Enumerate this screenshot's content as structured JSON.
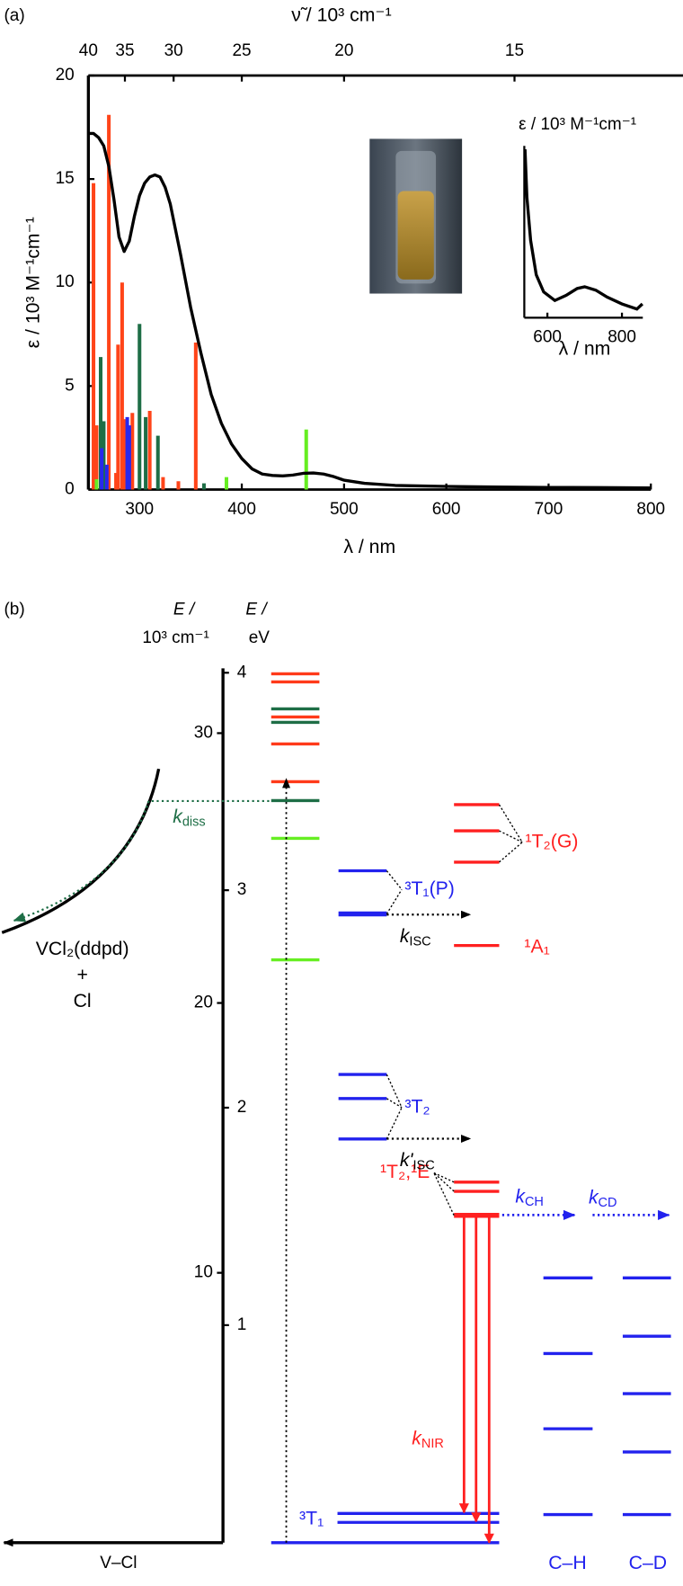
{
  "chart_data": {
    "type": "line",
    "label": "(a)",
    "x_label": "λ / nm",
    "y_label": "ε / 10³ M⁻¹cm⁻¹",
    "x2_label": "ν̃ / 10³ cm⁻¹",
    "xlim": [
      250,
      800
    ],
    "ylim": [
      0,
      20
    ],
    "xticks": [
      300,
      400,
      500,
      600,
      700,
      800
    ],
    "yticks": [
      0,
      5,
      10,
      15,
      20
    ],
    "x2ticks": [
      40,
      35,
      30,
      25,
      20,
      15
    ],
    "series": [
      {
        "type": "line",
        "color": "#000000",
        "x": [
          250,
          255,
          260,
          265,
          270,
          275,
          280,
          285,
          290,
          295,
          300,
          305,
          310,
          315,
          320,
          325,
          330,
          340,
          350,
          360,
          370,
          380,
          390,
          400,
          410,
          420,
          430,
          440,
          450,
          460,
          470,
          480,
          490,
          500,
          520,
          550,
          600,
          650,
          700,
          750,
          800
        ],
        "values": [
          17.2,
          17.2,
          17.0,
          16.6,
          15.6,
          14.0,
          12.2,
          11.5,
          12.0,
          13.2,
          14.2,
          14.8,
          15.1,
          15.2,
          15.1,
          14.6,
          13.8,
          11.4,
          8.8,
          6.6,
          4.6,
          3.2,
          2.2,
          1.5,
          1.0,
          0.75,
          0.68,
          0.66,
          0.7,
          0.78,
          0.8,
          0.75,
          0.62,
          0.45,
          0.3,
          0.2,
          0.15,
          0.12,
          0.1,
          0.09,
          0.08
        ]
      },
      {
        "type": "bar",
        "color": "#ff4419",
        "x": [
          255,
          258,
          270,
          277,
          279,
          283,
          286,
          293,
          310,
          323,
          338,
          355
        ],
        "values": [
          14.8,
          3.1,
          18.1,
          0.8,
          7.0,
          10.0,
          3.4,
          3.7,
          3.8,
          0.6,
          0.4,
          7.1
        ]
      },
      {
        "type": "bar",
        "color": "#1e6e46",
        "x": [
          262,
          265,
          300,
          306,
          318,
          363
        ],
        "values": [
          6.4,
          3.3,
          8.0,
          3.5,
          2.6,
          0.3
        ]
      },
      {
        "type": "bar",
        "color": "#2828ee",
        "x": [
          263,
          268,
          288,
          290
        ],
        "values": [
          2.0,
          1.2,
          3.5,
          3.1
        ]
      },
      {
        "type": "bar",
        "color": "#66ee22",
        "x": [
          258,
          385,
          463
        ],
        "values": [
          0.5,
          0.6,
          2.9
        ]
      }
    ],
    "inset": {
      "type": "line",
      "title": "ε  / 10³ M⁻¹cm⁻¹",
      "x_label": "λ / nm",
      "xlim": [
        538,
        856
      ],
      "ylim": [
        0,
        1
      ],
      "xticks": [
        600,
        800
      ],
      "color": "#000000",
      "x": [
        540,
        545,
        555,
        570,
        590,
        620,
        650,
        680,
        700,
        730,
        760,
        800,
        840,
        855
      ],
      "values": [
        0.98,
        0.7,
        0.45,
        0.25,
        0.15,
        0.1,
        0.13,
        0.17,
        0.18,
        0.16,
        0.12,
        0.08,
        0.05,
        0.08
      ]
    }
  },
  "diagram": {
    "label": "(b)",
    "axis_left": {
      "title": [
        "E /",
        "10³ cm⁻¹"
      ],
      "ylim": [
        0,
        32.4
      ],
      "ticks": [
        10,
        20,
        30
      ]
    },
    "axis_right": {
      "title": [
        "E /",
        "eV"
      ],
      "ylim": [
        0,
        4.02
      ],
      "ticks": [
        1,
        2,
        3,
        4
      ]
    },
    "x_label": "V–Cl",
    "products": [
      "VCl₂(ddpd)",
      "+",
      "Cl"
    ],
    "groups": [
      {
        "energies": [
          32.2,
          31.9,
          30.9,
          30.6,
          30.4,
          29.6,
          28.2,
          27.5,
          26.1,
          21.6
        ],
        "colors": [
          "#ff3a1a",
          "#ff3a1a",
          "#1e6e46",
          "#ff3a1a",
          "#1e6e46",
          "#ff3a1a",
          "#ff3a1a",
          "#1e6e46",
          "#66ee22",
          "#66ee22"
        ]
      },
      {
        "label": "³T₁(P)",
        "energies": [
          24.9,
          23.3
        ],
        "colors": [
          "#2222ee",
          "#2222ee"
        ]
      },
      {
        "label": "³T₂",
        "energies": [
          17.35,
          16.46,
          14.96
        ],
        "colors": [
          "#2222ee",
          "#2222ee",
          "#2222ee"
        ]
      },
      {
        "label": "¹T₂(G)",
        "energies": [
          27.35,
          26.38,
          25.22
        ],
        "colors": [
          "#ff2020",
          "#ff2020",
          "#ff2020"
        ]
      },
      {
        "label": "¹A₁",
        "energies": [
          22.13
        ],
        "colors": [
          "#ff2020"
        ]
      },
      {
        "label": "¹T₂,¹E",
        "energies": [
          13.36,
          13.02,
          12.13
        ],
        "colors": [
          "#ff2020",
          "#ff2020",
          "#ff2020"
        ]
      },
      {
        "label": "³T₁",
        "energies": [
          1.08,
          0.75
        ],
        "colors": [
          "#2222ee",
          "#2222ee"
        ]
      },
      {
        "energies": [
          0
        ],
        "colors": [
          "#2222ee"
        ]
      },
      {
        "label": "C–H",
        "energies": [
          9.81,
          7.01,
          4.22,
          1.04
        ],
        "colors": [
          "#2222ee",
          "#2222ee",
          "#2222ee",
          "#2222ee"
        ]
      },
      {
        "label": "C–D",
        "energies": [
          9.81,
          7.65,
          5.52,
          3.36,
          1.04
        ],
        "colors": [
          "#2222ee",
          "#2222ee",
          "#2222ee",
          "#2222ee",
          "#2222ee"
        ]
      }
    ],
    "rates": [
      {
        "k": "k",
        "sub": "diss"
      },
      {
        "k": "k",
        "sub": "ISC"
      },
      {
        "k": "k'",
        "sub": "ISC"
      },
      {
        "k": "k",
        "sub": "CH"
      },
      {
        "k": "k",
        "sub": "CD"
      },
      {
        "k": "k",
        "sub": "NIR"
      }
    ]
  }
}
